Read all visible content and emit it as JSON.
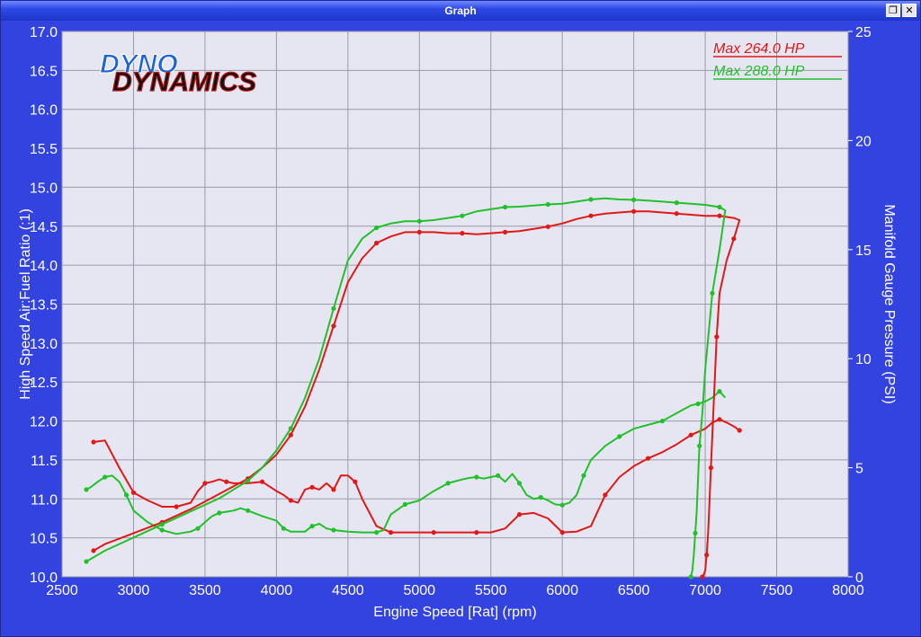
{
  "window": {
    "title": "Graph",
    "restore_icon": "❐",
    "close_icon": "✕"
  },
  "logo": {
    "line1": "DYNO",
    "line2": "DYNAMICS"
  },
  "chart_data": {
    "type": "line",
    "xlabel": "Engine Speed [Rat] (rpm)",
    "ylabel": "High Speed Air:Fuel Ratio (:1)",
    "y2label": "Manifold Gauge Pressure (PSI)",
    "xlim": [
      2500,
      8000
    ],
    "ylim": [
      10.0,
      17.0
    ],
    "y2lim": [
      0,
      25
    ],
    "xticks": [
      2500,
      3000,
      3500,
      4000,
      4500,
      5000,
      5500,
      6000,
      6500,
      7000,
      7500,
      8000
    ],
    "yticks": [
      "10.0",
      "10.5",
      "11.0",
      "11.5",
      "12.0",
      "12.5",
      "13.0",
      "13.5",
      "14.0",
      "14.5",
      "15.0",
      "15.5",
      "16.0",
      "16.5",
      "17.0"
    ],
    "y2ticks": [
      "0",
      "5",
      "10",
      "15",
      "20",
      "25"
    ],
    "grid": true,
    "legend_position": "top-right",
    "legend": [
      {
        "label": "Max 264.0 HP",
        "color": "#e01818"
      },
      {
        "label": "Max 288.0 HP",
        "color": "#22c02a"
      }
    ],
    "series": [
      {
        "color": "#e01818",
        "axis": "left",
        "kind": "afr",
        "x": [
          2720,
          2800,
          2900,
          3000,
          3100,
          3200,
          3300,
          3400,
          3450,
          3500,
          3550,
          3600,
          3650,
          3700,
          3800,
          3900,
          4000,
          4050,
          4100,
          4150,
          4200,
          4250,
          4300,
          4350,
          4400,
          4450,
          4500,
          4550,
          4600,
          4700,
          4800,
          4900,
          5000,
          5100,
          5200,
          5300,
          5400,
          5500,
          5600,
          5700,
          5800,
          5900,
          6000,
          6100,
          6200,
          6300,
          6400,
          6500,
          6600,
          6700,
          6800,
          6900,
          7000,
          7050,
          7100,
          7150,
          7200,
          7240
        ],
        "y": [
          11.73,
          11.75,
          11.4,
          11.08,
          10.98,
          10.9,
          10.9,
          10.95,
          11.1,
          11.2,
          11.22,
          11.25,
          11.22,
          11.2,
          11.2,
          11.22,
          11.1,
          11.05,
          10.98,
          10.95,
          11.12,
          11.15,
          11.12,
          11.2,
          11.12,
          11.3,
          11.3,
          11.22,
          11.0,
          10.65,
          10.57,
          10.57,
          10.57,
          10.57,
          10.57,
          10.57,
          10.57,
          10.57,
          10.62,
          10.8,
          10.82,
          10.75,
          10.57,
          10.58,
          10.65,
          11.05,
          11.28,
          11.42,
          11.52,
          11.6,
          11.7,
          11.82,
          11.9,
          11.98,
          12.02,
          11.98,
          11.93,
          11.88
        ]
      },
      {
        "color": "#22c02a",
        "axis": "left",
        "kind": "afr",
        "x": [
          2670,
          2700,
          2750,
          2800,
          2850,
          2900,
          2950,
          3000,
          3100,
          3200,
          3300,
          3400,
          3450,
          3500,
          3550,
          3600,
          3700,
          3750,
          3800,
          3900,
          4000,
          4050,
          4100,
          4200,
          4250,
          4300,
          4350,
          4400,
          4500,
          4600,
          4700,
          4750,
          4800,
          4900,
          5000,
          5100,
          5200,
          5300,
          5350,
          5400,
          5450,
          5500,
          5550,
          5600,
          5650,
          5700,
          5750,
          5800,
          5850,
          5900,
          5950,
          6000,
          6050,
          6100,
          6150,
          6200,
          6300,
          6400,
          6500,
          6600,
          6700,
          6800,
          6900,
          6950,
          7000,
          7050,
          7100,
          7140
        ],
        "y": [
          11.12,
          11.15,
          11.22,
          11.28,
          11.3,
          11.22,
          11.05,
          10.85,
          10.7,
          10.6,
          10.55,
          10.58,
          10.62,
          10.7,
          10.78,
          10.82,
          10.85,
          10.88,
          10.85,
          10.78,
          10.72,
          10.62,
          10.58,
          10.58,
          10.65,
          10.68,
          10.62,
          10.6,
          10.58,
          10.57,
          10.57,
          10.6,
          10.8,
          10.93,
          10.98,
          11.1,
          11.2,
          11.25,
          11.27,
          11.28,
          11.26,
          11.28,
          11.3,
          11.22,
          11.32,
          11.2,
          11.05,
          11.0,
          11.02,
          10.98,
          10.93,
          10.92,
          10.95,
          11.05,
          11.3,
          11.5,
          11.68,
          11.8,
          11.9,
          11.95,
          12.0,
          12.1,
          12.2,
          12.22,
          12.25,
          12.3,
          12.38,
          12.3
        ]
      },
      {
        "color": "#e01818",
        "axis": "right",
        "kind": "boost",
        "x": [
          2720,
          2800,
          3000,
          3200,
          3400,
          3600,
          3800,
          3900,
          4000,
          4100,
          4200,
          4300,
          4400,
          4500,
          4600,
          4700,
          4800,
          4900,
          5000,
          5100,
          5200,
          5300,
          5400,
          5500,
          5600,
          5700,
          5800,
          5900,
          6000,
          6100,
          6200,
          6300,
          6400,
          6500,
          6600,
          6700,
          6800,
          6900,
          7000,
          7100,
          7200,
          7240,
          7200,
          7150,
          7100,
          7080,
          7060,
          7050,
          7040,
          7030,
          7020,
          7010,
          7000,
          6990,
          6980
        ],
        "y": [
          1.2,
          1.5,
          2.0,
          2.5,
          3.1,
          3.8,
          4.5,
          5.0,
          5.6,
          6.5,
          7.8,
          9.5,
          11.5,
          13.5,
          14.6,
          15.3,
          15.6,
          15.8,
          15.8,
          15.8,
          15.75,
          15.75,
          15.7,
          15.75,
          15.8,
          15.85,
          15.95,
          16.05,
          16.2,
          16.4,
          16.55,
          16.65,
          16.7,
          16.75,
          16.75,
          16.7,
          16.65,
          16.6,
          16.55,
          16.55,
          16.45,
          16.35,
          15.5,
          14.5,
          13.0,
          11.0,
          8.0,
          6.5,
          5.0,
          3.5,
          2.0,
          1.0,
          0.3,
          0.1,
          0.0
        ],
        "markers": [
          1.2,
          2.0,
          2.5,
          3.1,
          3.8,
          4.5,
          5.6,
          7.8,
          11.5,
          13.5,
          14.6,
          15.6,
          15.8,
          15.75,
          15.7,
          15.8,
          15.95,
          16.05,
          16.4,
          16.55,
          16.75,
          16.7,
          16.6,
          16.55,
          16.35
        ]
      },
      {
        "color": "#22c02a",
        "axis": "right",
        "kind": "boost",
        "x": [
          2670,
          2800,
          3000,
          3200,
          3400,
          3600,
          3800,
          3900,
          4000,
          4100,
          4200,
          4300,
          4400,
          4500,
          4600,
          4700,
          4800,
          4900,
          5000,
          5100,
          5200,
          5300,
          5400,
          5500,
          5600,
          5700,
          5800,
          5900,
          6000,
          6100,
          6200,
          6300,
          6400,
          6500,
          6600,
          6700,
          6800,
          6900,
          7000,
          7100,
          7140,
          7100,
          7050,
          7000,
          6980,
          6960,
          6950,
          6940,
          6930,
          6920,
          6910,
          6900
        ],
        "y": [
          0.7,
          1.2,
          1.8,
          2.4,
          3.0,
          3.6,
          4.4,
          5.0,
          5.8,
          6.8,
          8.2,
          10.0,
          12.3,
          14.5,
          15.5,
          16.0,
          16.2,
          16.3,
          16.3,
          16.35,
          16.45,
          16.55,
          16.75,
          16.85,
          16.95,
          16.97,
          17.02,
          17.07,
          17.1,
          17.2,
          17.3,
          17.35,
          17.3,
          17.28,
          17.25,
          17.2,
          17.15,
          17.1,
          17.05,
          16.95,
          16.8,
          15.0,
          13.0,
          9.5,
          7.5,
          6.0,
          4.5,
          3.0,
          2.0,
          1.0,
          0.3,
          0.0
        ],
        "markers": [
          0.7,
          1.2,
          1.8,
          2.4,
          3.0,
          4.4,
          5.8,
          8.2,
          12.3,
          14.5,
          15.5,
          16.2,
          16.3,
          16.45,
          16.75,
          16.85,
          16.95,
          17.07,
          17.1,
          17.3,
          17.3,
          17.25,
          17.1,
          16.95
        ]
      }
    ]
  }
}
